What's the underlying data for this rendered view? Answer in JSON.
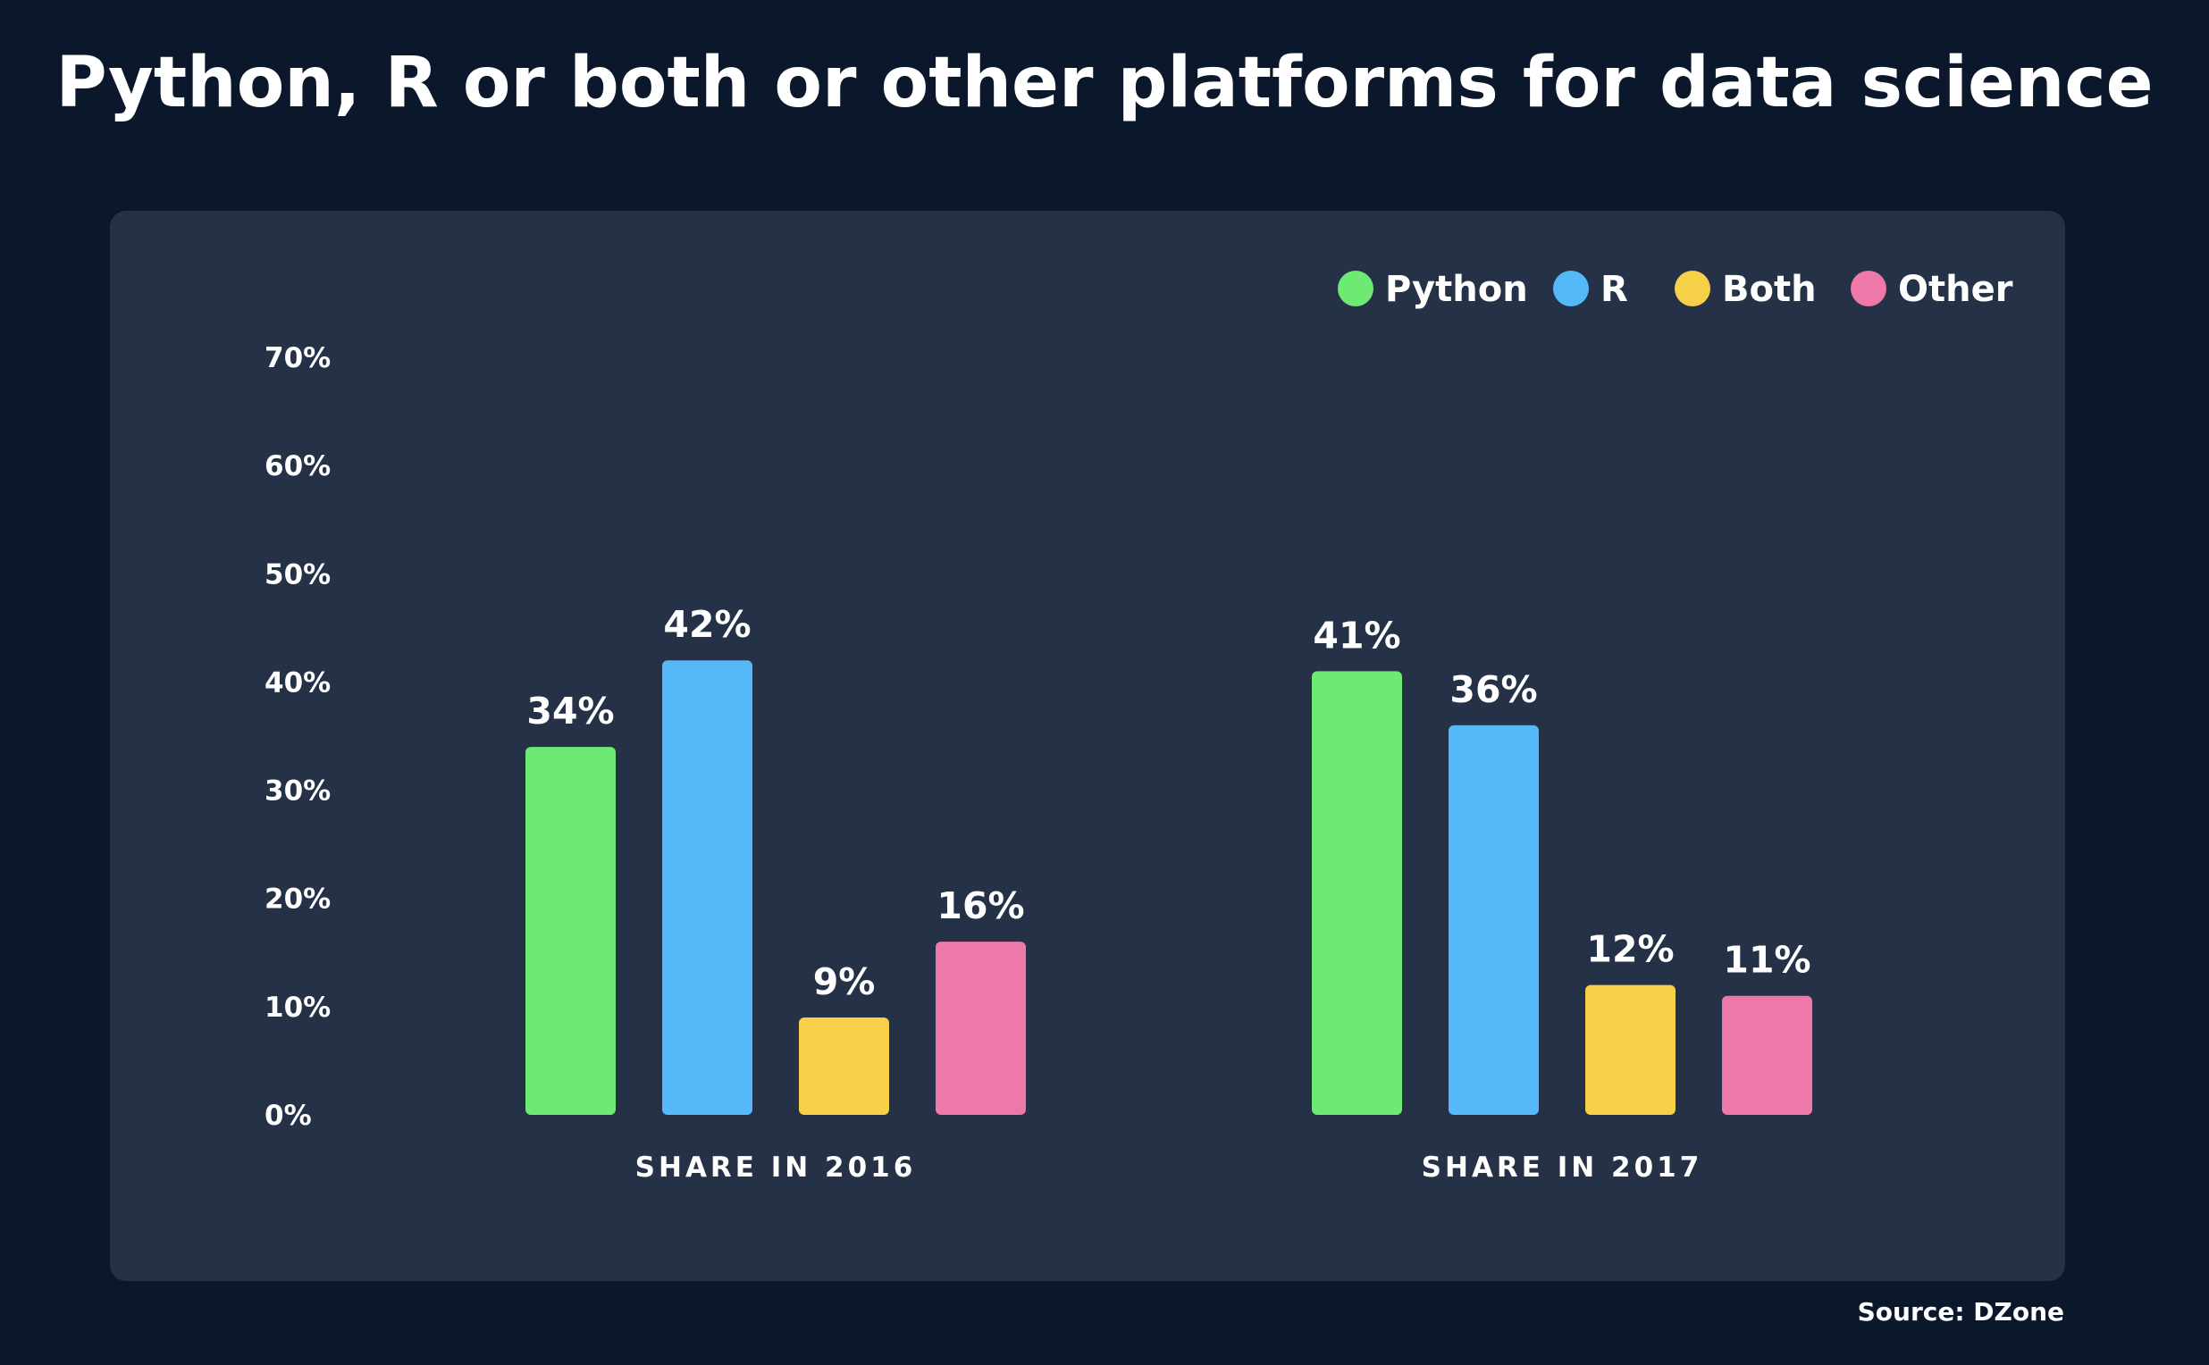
{
  "title": "Python, R or both or other platforms for data science",
  "source": "Source: DZone",
  "chart_data": {
    "type": "bar",
    "categories": [
      "SHARE IN 2016",
      "SHARE IN 2017"
    ],
    "series": [
      {
        "name": "Python",
        "color": "#6ee974",
        "values": [
          34,
          41
        ],
        "labels": [
          "34%",
          "41%"
        ]
      },
      {
        "name": "R",
        "color": "#55b9f7",
        "values": [
          42,
          36
        ],
        "labels": [
          "42%",
          "36%"
        ]
      },
      {
        "name": "Both",
        "color": "#f6d049",
        "values": [
          9,
          12
        ],
        "labels": [
          "9%",
          "12%"
        ]
      },
      {
        "name": "Other",
        "color": "#ee79a9",
        "values": [
          16,
          11
        ],
        "labels": [
          "16%",
          "11%"
        ]
      }
    ],
    "ylim": [
      0,
      70
    ],
    "yticks": [
      0,
      10,
      20,
      30,
      40,
      50,
      60,
      70
    ],
    "ytick_labels": [
      "0%",
      "10%",
      "20%",
      "30%",
      "40%",
      "50%",
      "60%",
      "70%"
    ],
    "grid": false,
    "legend_position": "top-right"
  }
}
